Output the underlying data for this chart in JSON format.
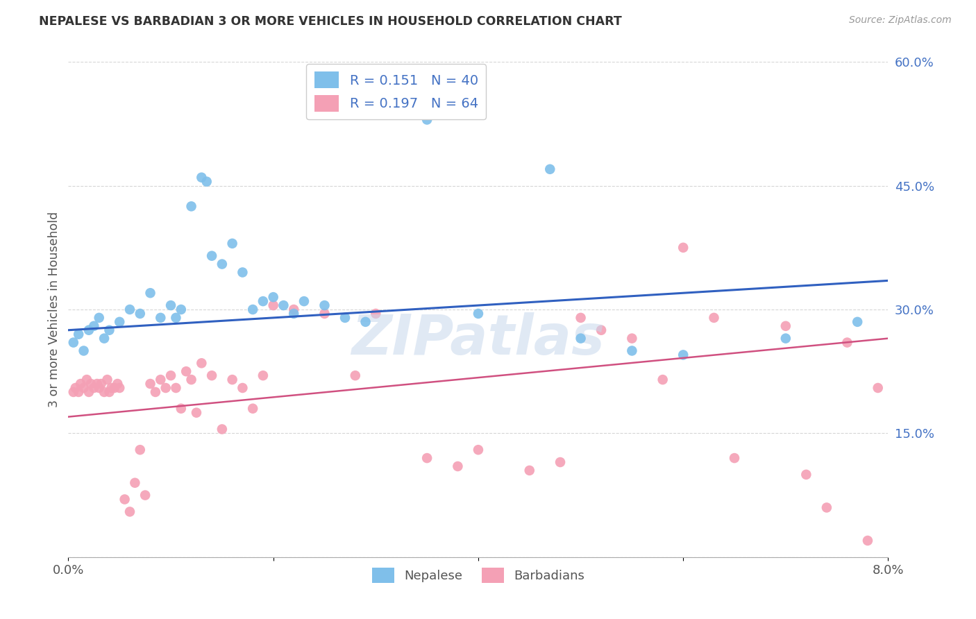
{
  "title": "NEPALESE VS BARBADIAN 3 OR MORE VEHICLES IN HOUSEHOLD CORRELATION CHART",
  "source": "Source: ZipAtlas.com",
  "ylabel": "3 or more Vehicles in Household",
  "x_min": 0.0,
  "x_max": 8.0,
  "y_min": 0.0,
  "y_max": 60.0,
  "nepalese_R": 0.151,
  "nepalese_N": 40,
  "barbadian_R": 0.197,
  "barbadian_N": 64,
  "nepalese_color": "#7fbfea",
  "barbadian_color": "#f4a0b5",
  "nepalese_line_color": "#3060c0",
  "barbadian_line_color": "#d05080",
  "watermark": "ZIPatlas",
  "legend_label_nepalese": "Nepalese",
  "legend_label_barbadian": "Barbadians",
  "blue_line_y0": 27.5,
  "blue_line_y8": 33.5,
  "pink_line_y0": 17.0,
  "pink_line_y8": 26.5,
  "nepalese_x": [
    0.05,
    0.1,
    0.15,
    0.2,
    0.25,
    0.3,
    0.35,
    0.4,
    0.5,
    0.6,
    0.7,
    0.8,
    0.9,
    1.0,
    1.05,
    1.1,
    1.2,
    1.3,
    1.35,
    1.4,
    1.5,
    1.6,
    1.7,
    1.8,
    1.9,
    2.0,
    2.1,
    2.2,
    2.3,
    2.5,
    2.7,
    2.9,
    3.5,
    4.0,
    4.7,
    5.0,
    5.5,
    6.0,
    7.0,
    7.7
  ],
  "nepalese_y": [
    26.0,
    27.0,
    25.0,
    27.5,
    28.0,
    29.0,
    26.5,
    27.5,
    28.5,
    30.0,
    29.5,
    32.0,
    29.0,
    30.5,
    29.0,
    30.0,
    42.5,
    46.0,
    45.5,
    36.5,
    35.5,
    38.0,
    34.5,
    30.0,
    31.0,
    31.5,
    30.5,
    29.5,
    31.0,
    30.5,
    29.0,
    28.5,
    53.0,
    29.5,
    47.0,
    26.5,
    25.0,
    24.5,
    26.5,
    28.5
  ],
  "barbadian_x": [
    0.05,
    0.07,
    0.1,
    0.12,
    0.15,
    0.18,
    0.2,
    0.22,
    0.25,
    0.28,
    0.3,
    0.32,
    0.35,
    0.38,
    0.4,
    0.42,
    0.45,
    0.48,
    0.5,
    0.55,
    0.6,
    0.65,
    0.7,
    0.75,
    0.8,
    0.85,
    0.9,
    0.95,
    1.0,
    1.05,
    1.1,
    1.15,
    1.2,
    1.25,
    1.3,
    1.4,
    1.5,
    1.6,
    1.7,
    1.8,
    1.9,
    2.0,
    2.2,
    2.5,
    2.8,
    3.0,
    3.5,
    3.8,
    4.0,
    4.5,
    4.8,
    5.0,
    5.2,
    5.5,
    5.8,
    6.0,
    6.3,
    6.5,
    7.0,
    7.2,
    7.4,
    7.6,
    7.8,
    7.9
  ],
  "barbadian_y": [
    20.0,
    20.5,
    20.0,
    21.0,
    20.5,
    21.5,
    20.0,
    21.0,
    20.5,
    21.0,
    20.5,
    21.0,
    20.0,
    21.5,
    20.0,
    20.5,
    20.5,
    21.0,
    20.5,
    7.0,
    5.5,
    9.0,
    13.0,
    7.5,
    21.0,
    20.0,
    21.5,
    20.5,
    22.0,
    20.5,
    18.0,
    22.5,
    21.5,
    17.5,
    23.5,
    22.0,
    15.5,
    21.5,
    20.5,
    18.0,
    22.0,
    30.5,
    30.0,
    29.5,
    22.0,
    29.5,
    12.0,
    11.0,
    13.0,
    10.5,
    11.5,
    29.0,
    27.5,
    26.5,
    21.5,
    37.5,
    29.0,
    12.0,
    28.0,
    10.0,
    6.0,
    26.0,
    2.0,
    20.5
  ]
}
